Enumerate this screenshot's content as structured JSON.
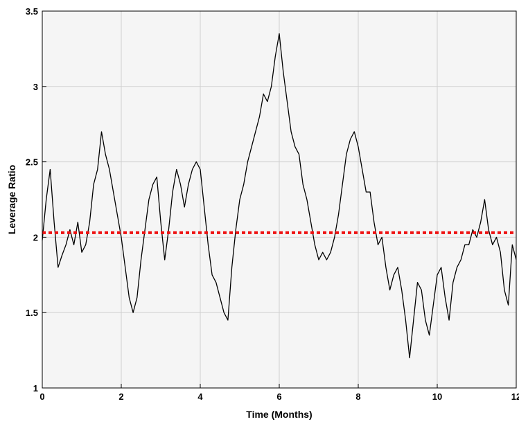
{
  "chart_data": {
    "type": "line",
    "title": "",
    "xlabel": "Time (Months)",
    "ylabel": "Leverage Ratio",
    "xlim": [
      0,
      12
    ],
    "ylim": [
      1,
      3.5
    ],
    "x_ticks": [
      "0",
      "2",
      "4",
      "6",
      "8",
      "10",
      "12"
    ],
    "y_ticks": [
      "1",
      "1.5",
      "2",
      "2.5",
      "3",
      "3.5"
    ],
    "grid": true,
    "background": "#f5f5f5",
    "series": [
      {
        "color": "#000000",
        "style": "solid",
        "x": [
          0.0,
          0.1,
          0.2,
          0.3,
          0.4,
          0.5,
          0.6,
          0.7,
          0.8,
          0.9,
          1.0,
          1.1,
          1.2,
          1.3,
          1.4,
          1.5,
          1.6,
          1.7,
          1.8,
          1.9,
          2.0,
          2.1,
          2.2,
          2.3,
          2.4,
          2.5,
          2.6,
          2.7,
          2.8,
          2.9,
          3.0,
          3.1,
          3.2,
          3.3,
          3.4,
          3.5,
          3.6,
          3.7,
          3.8,
          3.9,
          4.0,
          4.1,
          4.2,
          4.3,
          4.4,
          4.5,
          4.6,
          4.7,
          4.8,
          4.9,
          5.0,
          5.1,
          5.2,
          5.3,
          5.4,
          5.5,
          5.6,
          5.7,
          5.8,
          5.9,
          6.0,
          6.1,
          6.2,
          6.3,
          6.4,
          6.5,
          6.6,
          6.7,
          6.8,
          6.9,
          7.0,
          7.1,
          7.2,
          7.3,
          7.4,
          7.5,
          7.6,
          7.7,
          7.8,
          7.9,
          8.0,
          8.1,
          8.2,
          8.3,
          8.4,
          8.5,
          8.6,
          8.7,
          8.8,
          8.9,
          9.0,
          9.1,
          9.2,
          9.3,
          9.4,
          9.5,
          9.6,
          9.7,
          9.8,
          9.9,
          10.0,
          10.1,
          10.2,
          10.3,
          10.4,
          10.5,
          10.6,
          10.7,
          10.8,
          10.9,
          11.0,
          11.1,
          11.2,
          11.3,
          11.4,
          11.5,
          11.6,
          11.7,
          11.8,
          11.9,
          12.0
        ],
        "values": [
          1.98,
          2.25,
          2.45,
          2.1,
          1.8,
          1.88,
          1.95,
          2.05,
          1.95,
          2.1,
          1.9,
          1.95,
          2.1,
          2.35,
          2.45,
          2.7,
          2.55,
          2.45,
          2.3,
          2.15,
          2.0,
          1.8,
          1.6,
          1.5,
          1.6,
          1.85,
          2.05,
          2.25,
          2.35,
          2.4,
          2.1,
          1.85,
          2.05,
          2.3,
          2.45,
          2.35,
          2.2,
          2.35,
          2.45,
          2.5,
          2.45,
          2.2,
          1.95,
          1.75,
          1.7,
          1.6,
          1.5,
          1.45,
          1.8,
          2.05,
          2.25,
          2.35,
          2.5,
          2.6,
          2.7,
          2.8,
          2.95,
          2.9,
          3.0,
          3.2,
          3.35,
          3.1,
          2.9,
          2.7,
          2.6,
          2.55,
          2.35,
          2.25,
          2.1,
          1.95,
          1.85,
          1.9,
          1.85,
          1.9,
          2.0,
          2.15,
          2.35,
          2.55,
          2.65,
          2.7,
          2.6,
          2.45,
          2.3,
          2.3,
          2.1,
          1.95,
          2.0,
          1.8,
          1.65,
          1.75,
          1.8,
          1.65,
          1.45,
          1.2,
          1.45,
          1.7,
          1.65,
          1.45,
          1.35,
          1.55,
          1.75,
          1.8,
          1.6,
          1.45,
          1.7,
          1.8,
          1.85,
          1.95,
          1.95,
          2.05,
          2.0,
          2.1,
          2.25,
          2.05,
          1.95,
          2.0,
          1.9,
          1.65,
          1.55,
          1.95,
          1.85
        ]
      },
      {
        "color": "#ee1111",
        "style": "dotted",
        "x": [
          0,
          12
        ],
        "values": [
          2.03,
          2.03
        ]
      }
    ]
  }
}
